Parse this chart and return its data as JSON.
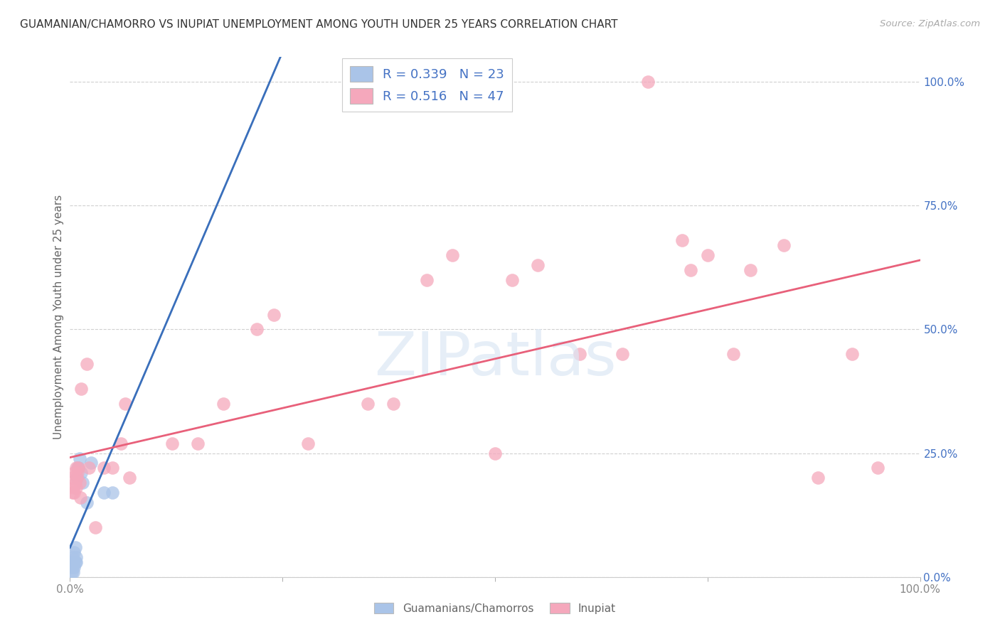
{
  "title": "GUAMANIAN/CHAMORRO VS INUPIAT UNEMPLOYMENT AMONG YOUTH UNDER 25 YEARS CORRELATION CHART",
  "source": "Source: ZipAtlas.com",
  "ylabel": "Unemployment Among Youth under 25 years",
  "legend1_label": "Guamanians/Chamorros",
  "legend2_label": "Inupiat",
  "legend_R1": "0.339",
  "legend_N1": "23",
  "legend_R2": "0.516",
  "legend_N2": "47",
  "blue_color": "#aac4e8",
  "pink_color": "#f5a8bc",
  "blue_line_color": "#3a6fbb",
  "pink_line_color": "#e8607a",
  "blue_dash_color": "#90b8e0",
  "ytick_labels": [
    "0.0%",
    "25.0%",
    "50.0%",
    "75.0%",
    "100.0%"
  ],
  "ytick_values": [
    0.0,
    0.25,
    0.5,
    0.75,
    1.0
  ],
  "blue_x": [
    0.001,
    0.002,
    0.002,
    0.003,
    0.003,
    0.004,
    0.004,
    0.005,
    0.005,
    0.006,
    0.006,
    0.007,
    0.007,
    0.008,
    0.009,
    0.01,
    0.011,
    0.013,
    0.015,
    0.02,
    0.025,
    0.04,
    0.05
  ],
  "blue_y": [
    0.02,
    0.01,
    0.03,
    0.02,
    0.04,
    0.01,
    0.03,
    0.02,
    0.05,
    0.03,
    0.06,
    0.03,
    0.04,
    0.2,
    0.22,
    0.22,
    0.24,
    0.21,
    0.19,
    0.15,
    0.23,
    0.17,
    0.17
  ],
  "pink_x": [
    0.002,
    0.003,
    0.004,
    0.005,
    0.005,
    0.006,
    0.007,
    0.007,
    0.008,
    0.009,
    0.01,
    0.011,
    0.012,
    0.013,
    0.02,
    0.022,
    0.03,
    0.04,
    0.05,
    0.06,
    0.065,
    0.07,
    0.12,
    0.15,
    0.18,
    0.22,
    0.24,
    0.28,
    0.35,
    0.38,
    0.42,
    0.45,
    0.5,
    0.52,
    0.55,
    0.6,
    0.65,
    0.68,
    0.72,
    0.73,
    0.75,
    0.78,
    0.8,
    0.84,
    0.88,
    0.92,
    0.95
  ],
  "pink_y": [
    0.2,
    0.17,
    0.18,
    0.17,
    0.21,
    0.19,
    0.22,
    0.18,
    0.2,
    0.21,
    0.22,
    0.19,
    0.16,
    0.38,
    0.43,
    0.22,
    0.1,
    0.22,
    0.22,
    0.27,
    0.35,
    0.2,
    0.27,
    0.27,
    0.35,
    0.5,
    0.53,
    0.27,
    0.35,
    0.35,
    0.6,
    0.65,
    0.25,
    0.6,
    0.63,
    0.45,
    0.45,
    1.0,
    0.68,
    0.62,
    0.65,
    0.45,
    0.62,
    0.67,
    0.2,
    0.45,
    0.22
  ]
}
